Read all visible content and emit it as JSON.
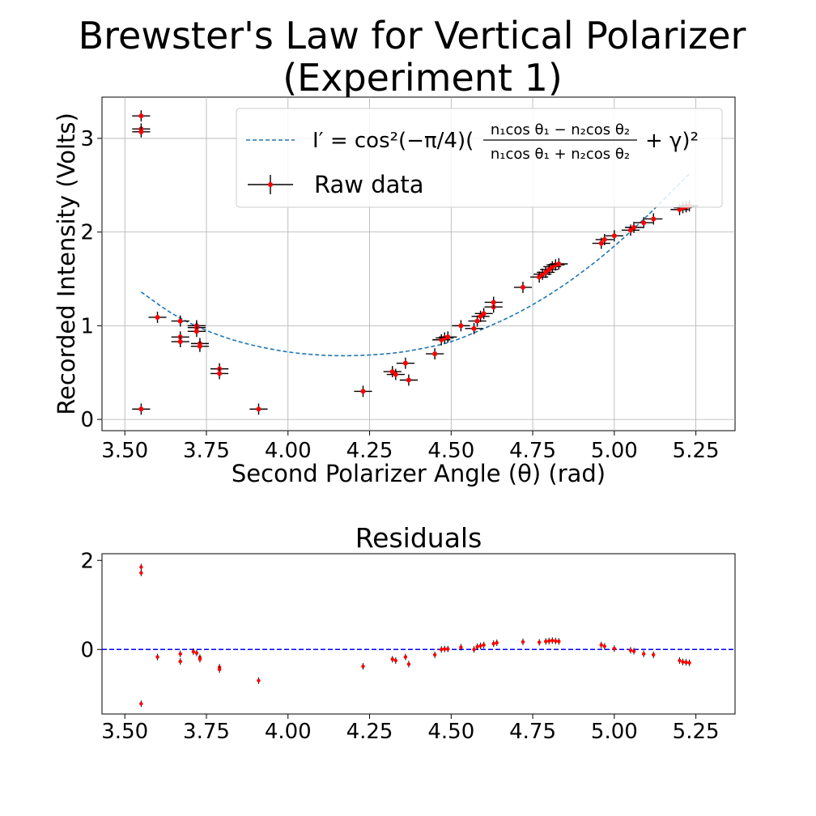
{
  "colors": {
    "fit": "#1f77b4",
    "points": "#ff0000",
    "errorbars": "#000000",
    "zero_line": "#0000ff",
    "grid": "#b0b0b0"
  },
  "chart_data": [
    {
      "type": "scatter",
      "title_line1": "Brewster's Law for Vertical Polarizer",
      "title_line2": "(Experiment 1)",
      "xlabel": "Second Polarizer Angle (θ) (rad)",
      "ylabel": "Recorded Intensity (Volts)",
      "xlim": [
        3.43,
        5.37
      ],
      "ylim": [
        -0.12,
        3.44
      ],
      "xticks": [
        "3.50",
        "3.75",
        "4.00",
        "4.25",
        "4.50",
        "4.75",
        "5.00",
        "5.25"
      ],
      "yticks": [
        "0",
        "1",
        "2",
        "3"
      ],
      "grid": true,
      "legend": {
        "position": "top-right",
        "fit_label_main": "I′ = cos²(−π/4)(",
        "fit_label_frac_num": "n₁cos θ₁ − n₂cos θ₂",
        "fit_label_frac_den": "n₁cos θ₁ + n₂cos θ₂",
        "fit_label_tail": "+ γ)²",
        "data_label": "Raw data"
      },
      "fit_curve": {
        "x": [
          3.55,
          3.65,
          3.75,
          3.85,
          3.95,
          4.05,
          4.17,
          4.3,
          4.4,
          4.5,
          4.6,
          4.7,
          4.8,
          4.9,
          5.0,
          5.1,
          5.23
        ],
        "y": [
          1.36,
          1.12,
          0.95,
          0.83,
          0.75,
          0.7,
          0.68,
          0.7,
          0.75,
          0.83,
          0.97,
          1.13,
          1.33,
          1.57,
          1.85,
          2.17,
          2.62
        ]
      },
      "points": [
        {
          "x": 3.55,
          "y": 3.24
        },
        {
          "x": 3.55,
          "y": 3.1
        },
        {
          "x": 3.55,
          "y": 3.07
        },
        {
          "x": 3.55,
          "y": 0.11
        },
        {
          "x": 3.6,
          "y": 1.09
        },
        {
          "x": 3.67,
          "y": 1.05
        },
        {
          "x": 3.67,
          "y": 0.88
        },
        {
          "x": 3.67,
          "y": 0.83
        },
        {
          "x": 3.72,
          "y": 1.0
        },
        {
          "x": 3.72,
          "y": 0.98
        },
        {
          "x": 3.72,
          "y": 0.94
        },
        {
          "x": 3.73,
          "y": 0.81
        },
        {
          "x": 3.73,
          "y": 0.78
        },
        {
          "x": 3.79,
          "y": 0.54
        },
        {
          "x": 3.79,
          "y": 0.49
        },
        {
          "x": 3.91,
          "y": 0.11
        },
        {
          "x": 4.23,
          "y": 0.3
        },
        {
          "x": 4.32,
          "y": 0.51
        },
        {
          "x": 4.33,
          "y": 0.48
        },
        {
          "x": 4.36,
          "y": 0.6
        },
        {
          "x": 4.37,
          "y": 0.42
        },
        {
          "x": 4.45,
          "y": 0.7
        },
        {
          "x": 4.47,
          "y": 0.85
        },
        {
          "x": 4.48,
          "y": 0.87
        },
        {
          "x": 4.49,
          "y": 0.88
        },
        {
          "x": 4.53,
          "y": 1.0
        },
        {
          "x": 4.57,
          "y": 0.97
        },
        {
          "x": 4.58,
          "y": 1.05
        },
        {
          "x": 4.59,
          "y": 1.1
        },
        {
          "x": 4.6,
          "y": 1.13
        },
        {
          "x": 4.63,
          "y": 1.2
        },
        {
          "x": 4.63,
          "y": 1.25
        },
        {
          "x": 4.72,
          "y": 1.41
        },
        {
          "x": 4.77,
          "y": 1.52
        },
        {
          "x": 4.78,
          "y": 1.55
        },
        {
          "x": 4.79,
          "y": 1.57
        },
        {
          "x": 4.8,
          "y": 1.6
        },
        {
          "x": 4.81,
          "y": 1.63
        },
        {
          "x": 4.82,
          "y": 1.65
        },
        {
          "x": 4.83,
          "y": 1.66
        },
        {
          "x": 4.96,
          "y": 1.88
        },
        {
          "x": 4.97,
          "y": 1.92
        },
        {
          "x": 5.0,
          "y": 1.96
        },
        {
          "x": 5.05,
          "y": 2.02
        },
        {
          "x": 5.06,
          "y": 2.05
        },
        {
          "x": 5.09,
          "y": 2.1
        },
        {
          "x": 5.12,
          "y": 2.14
        },
        {
          "x": 5.2,
          "y": 2.24
        },
        {
          "x": 5.21,
          "y": 2.26
        },
        {
          "x": 5.22,
          "y": 2.27
        },
        {
          "x": 5.23,
          "y": 2.28
        }
      ],
      "xerr": 0.055,
      "yerr": 0.06
    },
    {
      "type": "scatter",
      "title": "Residuals",
      "xlim": [
        3.43,
        5.37
      ],
      "ylim": [
        -1.45,
        2.15
      ],
      "xticks": [
        "3.50",
        "3.75",
        "4.00",
        "4.25",
        "4.50",
        "4.75",
        "5.00",
        "5.25"
      ],
      "yticks": [
        "2",
        "0"
      ],
      "zero_line": 0,
      "points": [
        {
          "x": 3.55,
          "y": 1.85
        },
        {
          "x": 3.55,
          "y": 1.72
        },
        {
          "x": 3.55,
          "y": -1.22
        },
        {
          "x": 3.6,
          "y": -0.17
        },
        {
          "x": 3.67,
          "y": -0.1
        },
        {
          "x": 3.67,
          "y": -0.27
        },
        {
          "x": 3.71,
          "y": -0.05
        },
        {
          "x": 3.72,
          "y": -0.08
        },
        {
          "x": 3.73,
          "y": -0.18
        },
        {
          "x": 3.73,
          "y": -0.22
        },
        {
          "x": 3.79,
          "y": -0.4
        },
        {
          "x": 3.79,
          "y": -0.45
        },
        {
          "x": 3.91,
          "y": -0.7
        },
        {
          "x": 4.23,
          "y": -0.38
        },
        {
          "x": 4.32,
          "y": -0.22
        },
        {
          "x": 4.33,
          "y": -0.25
        },
        {
          "x": 4.36,
          "y": -0.17
        },
        {
          "x": 4.37,
          "y": -0.33
        },
        {
          "x": 4.45,
          "y": -0.12
        },
        {
          "x": 4.47,
          "y": 0.0
        },
        {
          "x": 4.48,
          "y": 0.01
        },
        {
          "x": 4.49,
          "y": 0.01
        },
        {
          "x": 4.53,
          "y": 0.05
        },
        {
          "x": 4.57,
          "y": 0.0
        },
        {
          "x": 4.58,
          "y": 0.06
        },
        {
          "x": 4.59,
          "y": 0.08
        },
        {
          "x": 4.6,
          "y": 0.1
        },
        {
          "x": 4.63,
          "y": 0.13
        },
        {
          "x": 4.64,
          "y": 0.15
        },
        {
          "x": 4.72,
          "y": 0.17
        },
        {
          "x": 4.77,
          "y": 0.16
        },
        {
          "x": 4.79,
          "y": 0.18
        },
        {
          "x": 4.8,
          "y": 0.19
        },
        {
          "x": 4.81,
          "y": 0.2
        },
        {
          "x": 4.82,
          "y": 0.19
        },
        {
          "x": 4.83,
          "y": 0.18
        },
        {
          "x": 4.96,
          "y": 0.1
        },
        {
          "x": 4.97,
          "y": 0.07
        },
        {
          "x": 5.0,
          "y": 0.02
        },
        {
          "x": 5.05,
          "y": -0.02
        },
        {
          "x": 5.06,
          "y": -0.04
        },
        {
          "x": 5.09,
          "y": -0.1
        },
        {
          "x": 5.12,
          "y": -0.12
        },
        {
          "x": 5.2,
          "y": -0.25
        },
        {
          "x": 5.21,
          "y": -0.28
        },
        {
          "x": 5.22,
          "y": -0.29
        },
        {
          "x": 5.23,
          "y": -0.3
        }
      ]
    }
  ]
}
